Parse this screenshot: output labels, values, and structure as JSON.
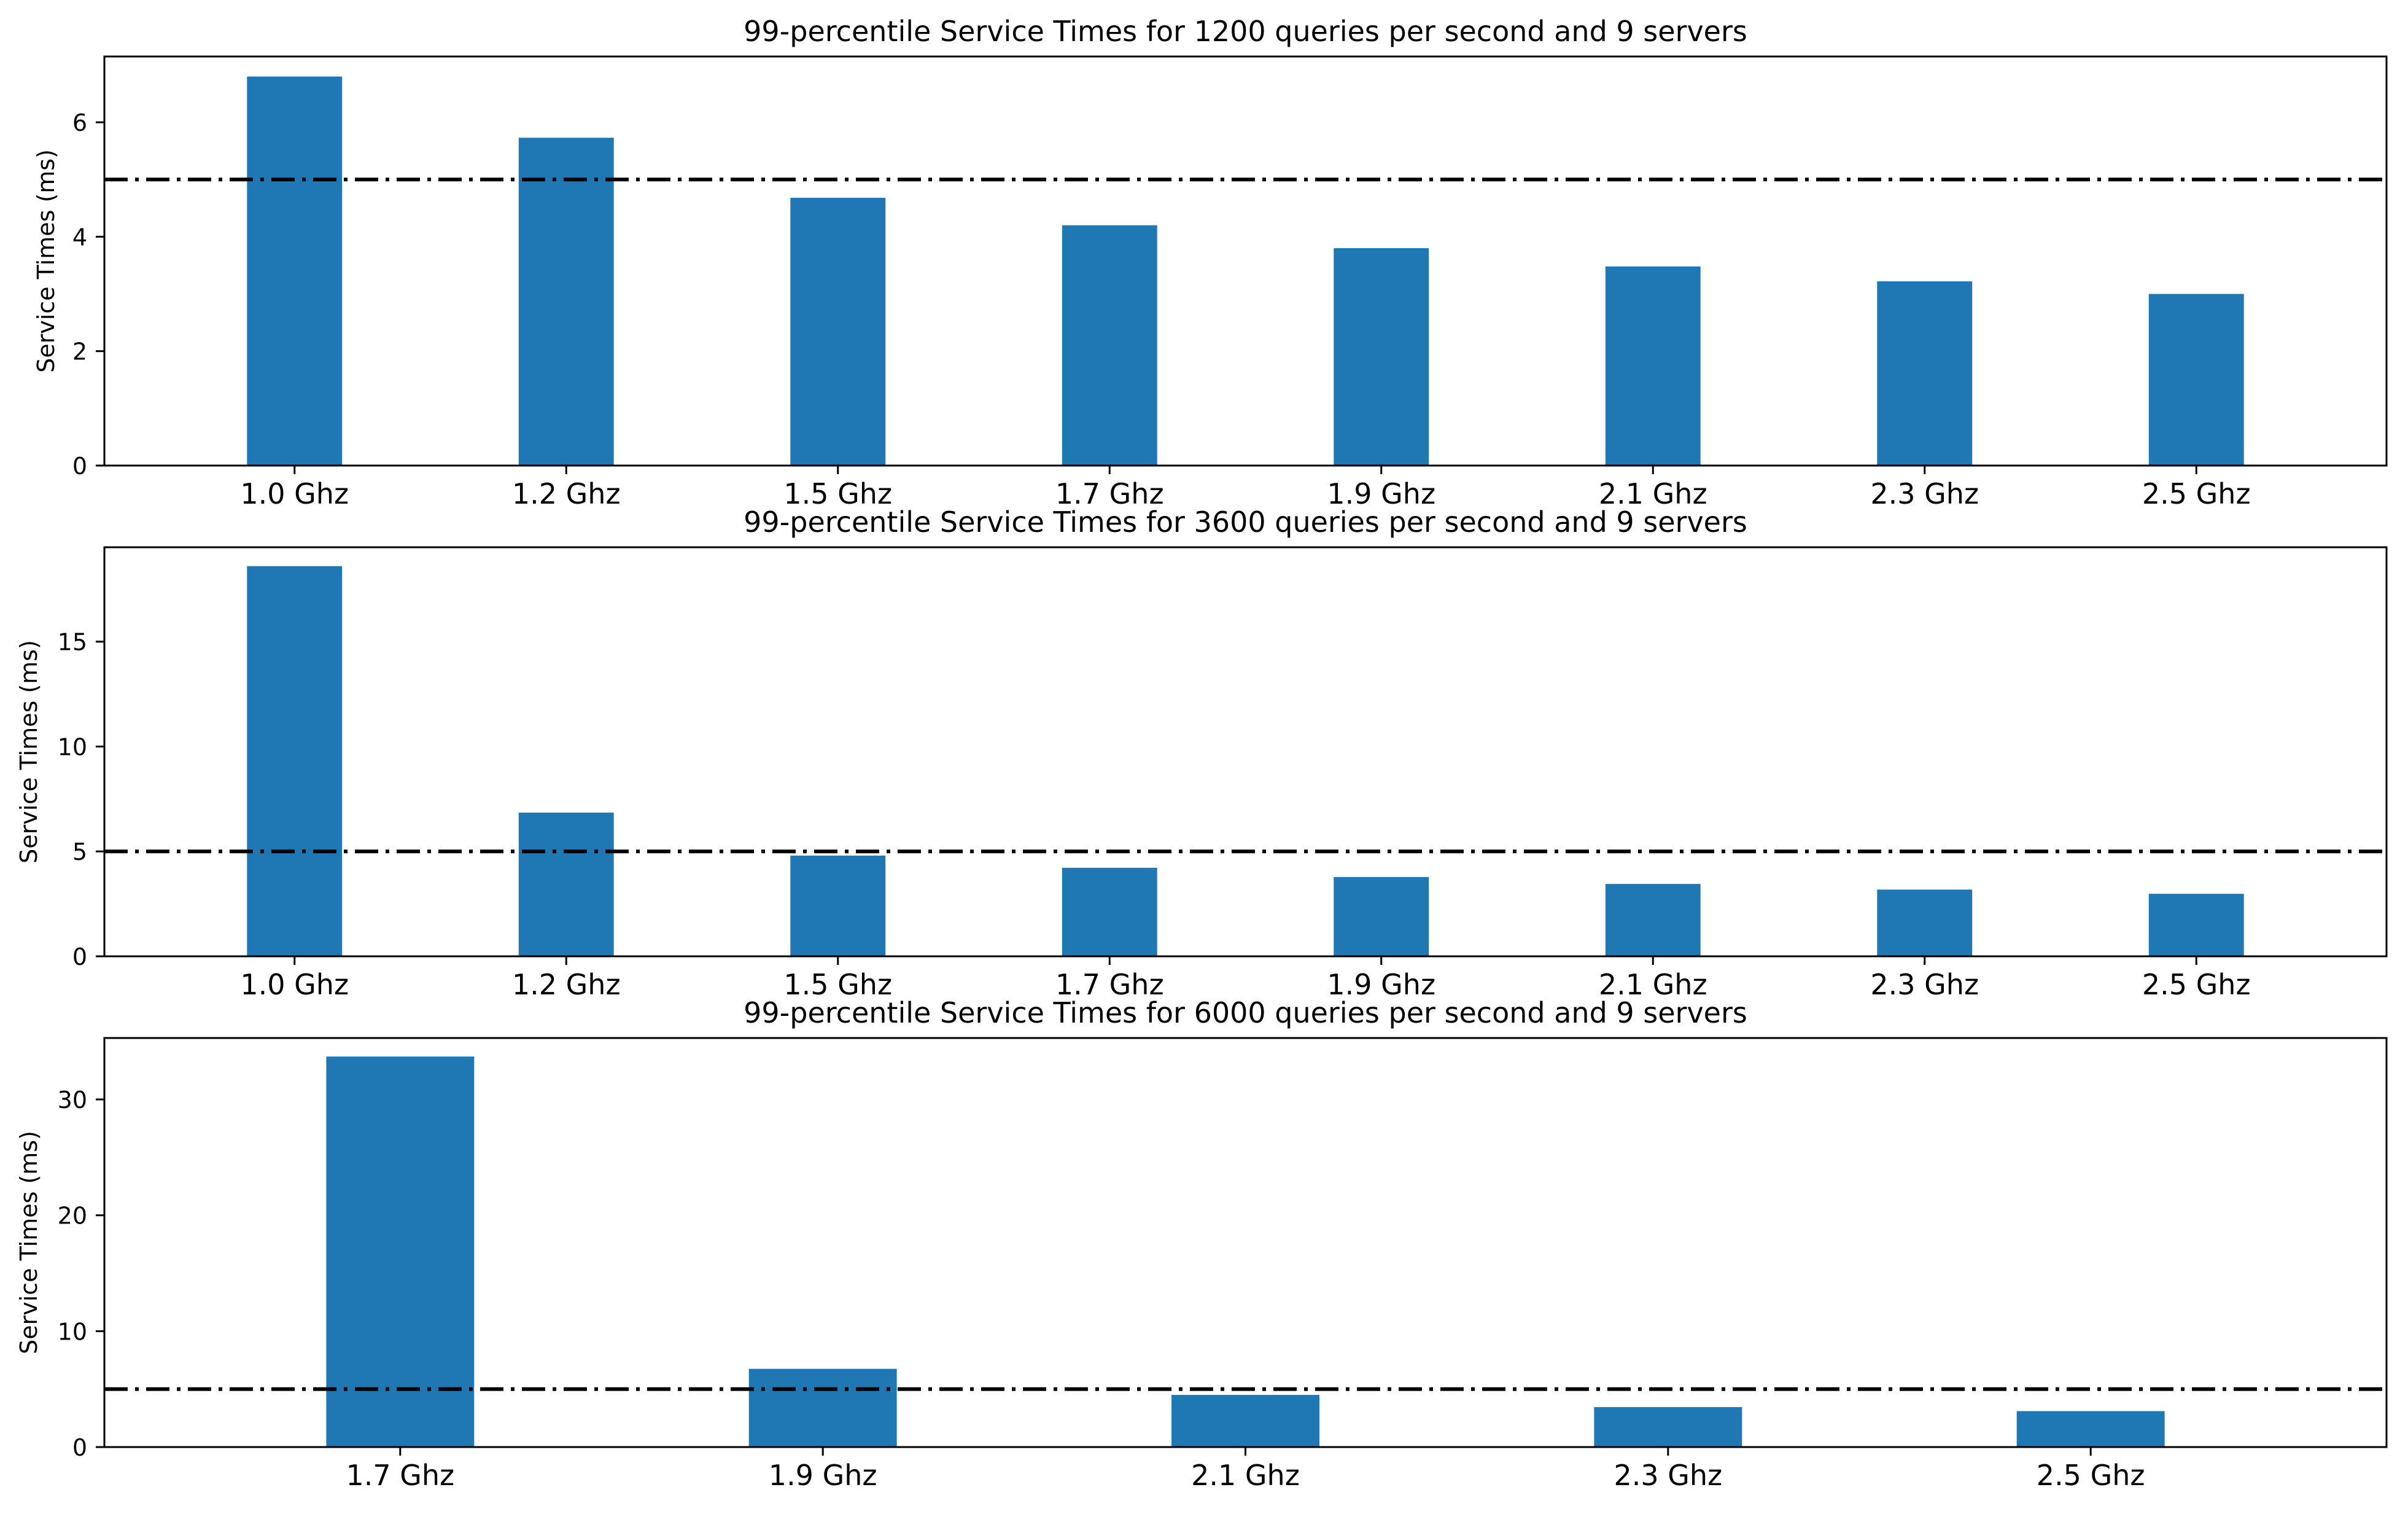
{
  "colors": {
    "bar": "#1f77b4",
    "threshold_line": "#000000",
    "axes": "#000000",
    "background": "#ffffff"
  },
  "chart_data": [
    {
      "type": "bar",
      "title": "99-percentile Service Times for 1200 queries per second and 9  servers",
      "xlabel": "",
      "ylabel": "Service Times (ms)",
      "categories": [
        "1.0 Ghz",
        "1.2 Ghz",
        "1.5 Ghz",
        "1.7 Ghz",
        "1.9 Ghz",
        "2.1 Ghz",
        "2.3 Ghz",
        "2.5 Ghz"
      ],
      "values": [
        6.8,
        5.73,
        4.68,
        4.2,
        3.8,
        3.48,
        3.22,
        3.0
      ],
      "ylim": [
        0,
        7.15
      ],
      "yticks": [
        0,
        2,
        4,
        6
      ],
      "reference_line": {
        "y": 5,
        "style": "dash-dot"
      },
      "grid": false
    },
    {
      "type": "bar",
      "title": "99-percentile Service Times for 3600 queries per second and 9  servers",
      "xlabel": "",
      "ylabel": "Service Times (ms)",
      "categories": [
        "1.0 Ghz",
        "1.2 Ghz",
        "1.5 Ghz",
        "1.7 Ghz",
        "1.9 Ghz",
        "2.1 Ghz",
        "2.3 Ghz",
        "2.5 Ghz"
      ],
      "values": [
        18.6,
        6.85,
        4.8,
        4.22,
        3.78,
        3.45,
        3.18,
        2.98
      ],
      "ylim": [
        0,
        19.5
      ],
      "yticks": [
        0,
        5,
        10,
        15
      ],
      "reference_line": {
        "y": 5,
        "style": "dash-dot"
      },
      "grid": false
    },
    {
      "type": "bar",
      "title": "99-percentile Service Times for 6000 queries per second and 9  servers",
      "xlabel": "",
      "ylabel": "Service Times (ms)",
      "categories": [
        "1.7 Ghz",
        "1.9 Ghz",
        "2.1 Ghz",
        "2.3 Ghz",
        "2.5 Ghz"
      ],
      "values": [
        33.7,
        6.75,
        4.5,
        3.45,
        3.1
      ],
      "ylim": [
        0,
        35.3
      ],
      "yticks": [
        0,
        10,
        20,
        30
      ],
      "reference_line": {
        "y": 5,
        "style": "dash-dot"
      },
      "grid": false
    }
  ]
}
